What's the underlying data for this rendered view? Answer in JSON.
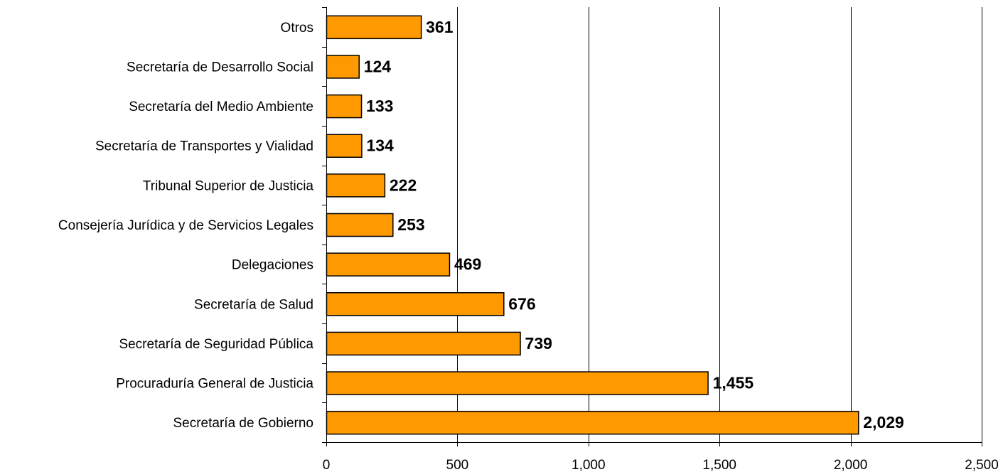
{
  "chart_data": {
    "type": "bar",
    "orientation": "horizontal",
    "categories": [
      "Otros",
      "Secretaría de Desarrollo Social",
      "Secretaría del Medio Ambiente",
      "Secretaría de Transportes y Vialidad",
      "Tribunal Superior de Justicia",
      "Consejería Jurídica y de Servicios Legales",
      "Delegaciones",
      "Secretaría de Salud",
      "Secretaría de Seguridad Pública",
      "Procuraduría General de Justicia",
      "Secretaría de Gobierno"
    ],
    "values": [
      361,
      124,
      133,
      134,
      222,
      253,
      469,
      676,
      739,
      1455,
      2029
    ],
    "data_labels": [
      "361",
      "124",
      "133",
      "134",
      "222",
      "253",
      "469",
      "676",
      "739",
      "1,455",
      "2,029"
    ],
    "x_ticks": [
      0,
      500,
      1000,
      1500,
      2000,
      2500
    ],
    "x_tick_labels": [
      "0",
      "500",
      "1,000",
      "1,500",
      "2,000",
      "2,500"
    ],
    "xlim": [
      0,
      2500
    ],
    "title": "",
    "xlabel": "",
    "ylabel": "",
    "grid": "vertical",
    "legend": "none",
    "colors": {
      "bar": "#FF9900",
      "bar_border": "#000000",
      "grid": "#000000"
    }
  }
}
